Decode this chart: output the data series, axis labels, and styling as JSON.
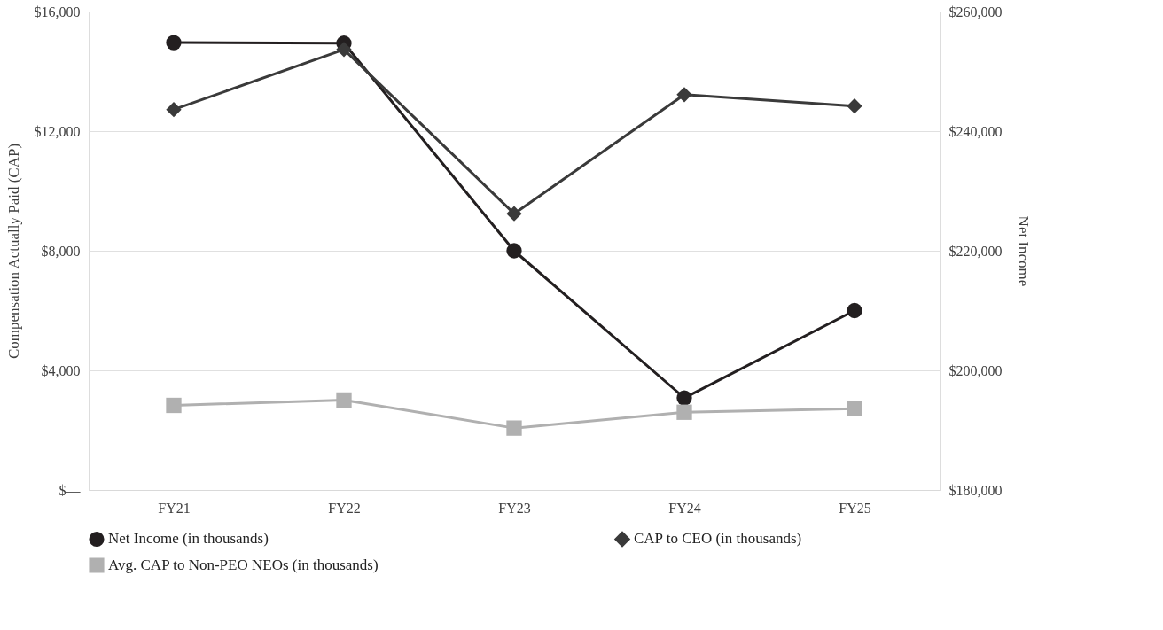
{
  "chart_data": {
    "type": "line",
    "categories": [
      "FY21",
      "FY22",
      "FY23",
      "FY24",
      "FY25"
    ],
    "ylabel": "Compensation Actually Paid (CAP)",
    "y2label": "Net Income",
    "ylim": [
      0,
      16000
    ],
    "yticks": [
      {
        "value": 0,
        "label": "$—"
      },
      {
        "value": 4000,
        "label": "$4,000"
      },
      {
        "value": 8000,
        "label": "$8,000"
      },
      {
        "value": 12000,
        "label": "$12,000"
      },
      {
        "value": 16000,
        "label": "$16,000"
      }
    ],
    "y2lim": [
      180000,
      260000
    ],
    "y2ticks": [
      {
        "value": 180000,
        "label": "$180,000"
      },
      {
        "value": 200000,
        "label": "$200,000"
      },
      {
        "value": 220000,
        "label": "$220,000"
      },
      {
        "value": 240000,
        "label": "$240,000"
      },
      {
        "value": 260000,
        "label": "$260,000"
      }
    ],
    "grid": "y",
    "legend": "bottom",
    "series": [
      {
        "name": "Net Income (in thousands)",
        "color": "#231f20",
        "marker": "circle",
        "axis": "y2",
        "values": [
          254800,
          254700,
          220000,
          195400,
          210000
        ]
      },
      {
        "name": "CAP to CEO (in thousands)",
        "color": "#3a3a3a",
        "marker": "diamond",
        "values": [
          12720,
          14730,
          9240,
          13220,
          12840
        ]
      },
      {
        "name": "Avg. CAP to Non-PEO NEOs (in thousands)",
        "color": "#b0b0b0",
        "marker": "square",
        "values": [
          2830,
          3010,
          2070,
          2600,
          2720
        ]
      }
    ]
  }
}
